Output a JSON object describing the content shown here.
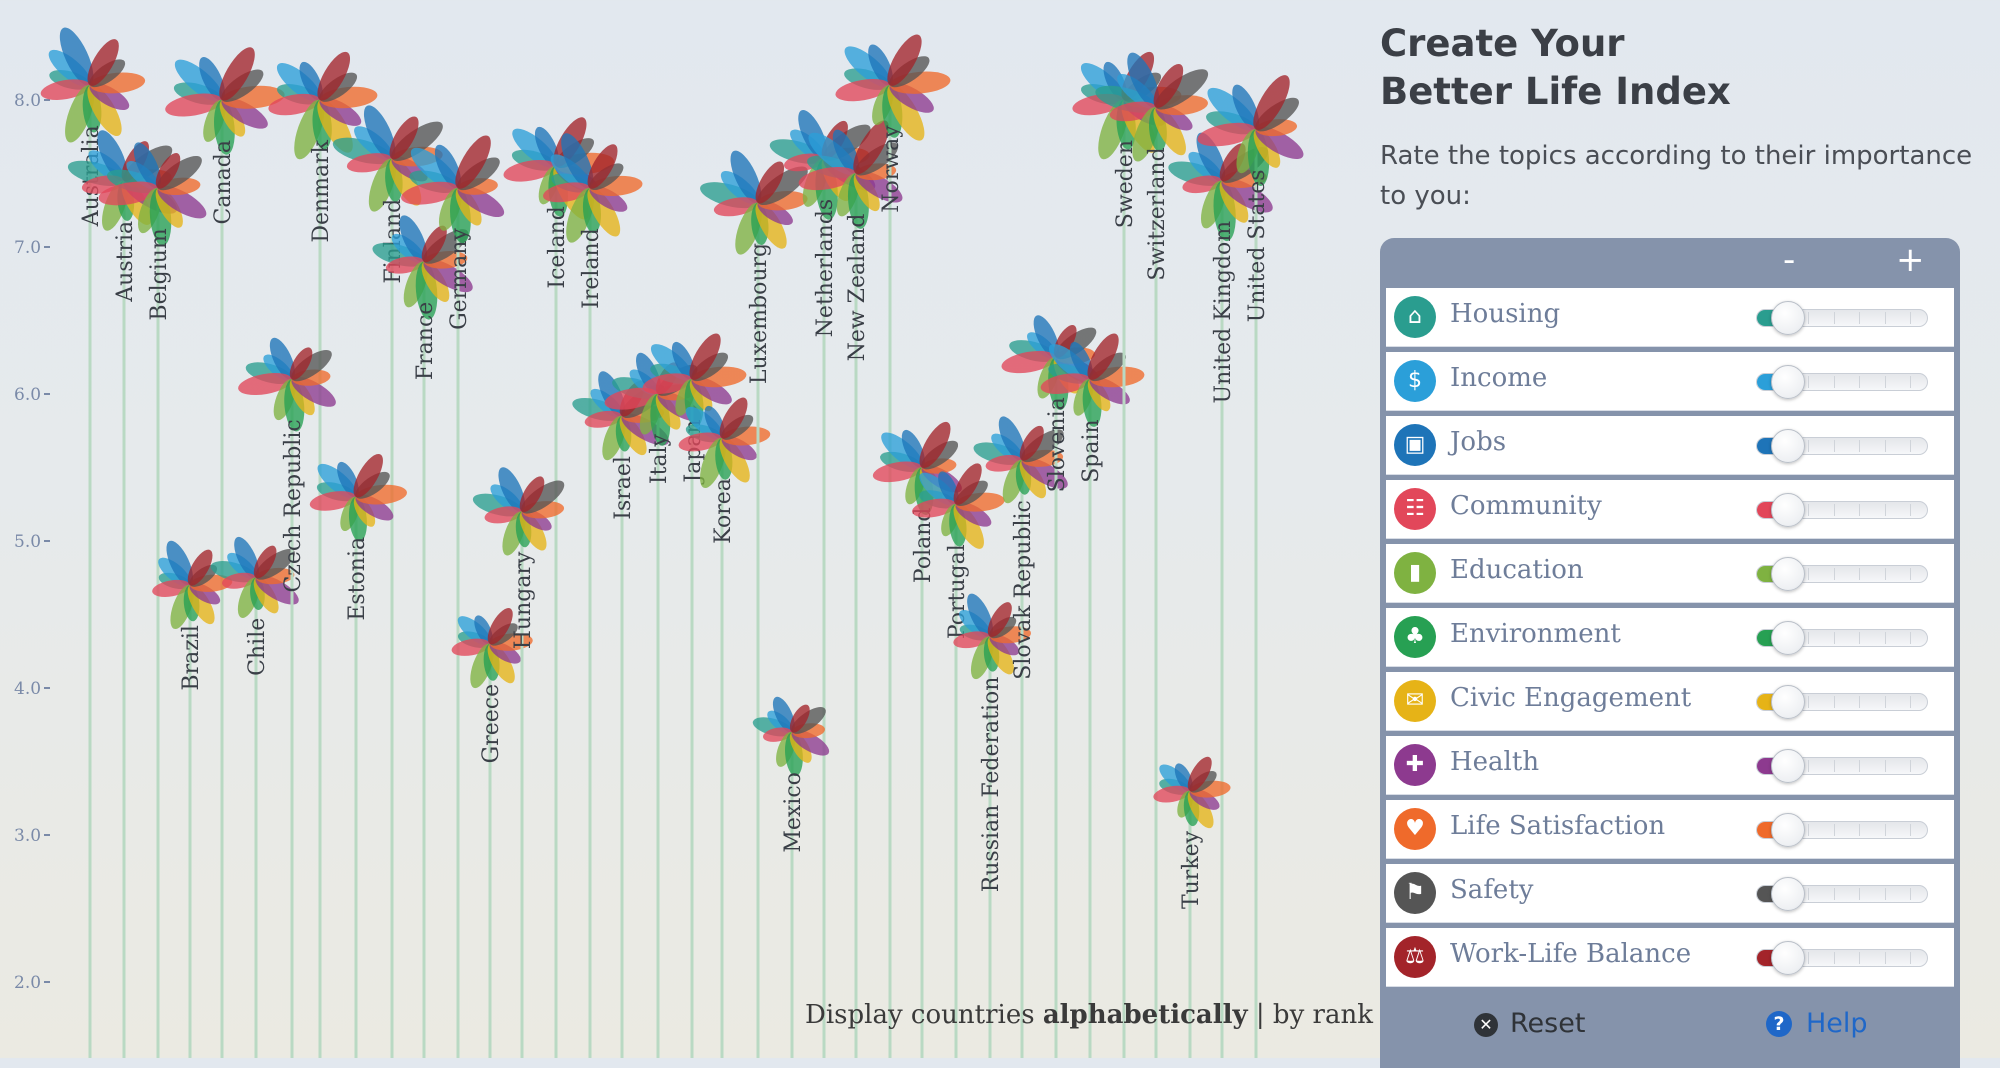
{
  "title": {
    "line1": "Create Your",
    "line2": "Better Life Index"
  },
  "subtitle": "Rate the topics according to their importance to you:",
  "panel": {
    "minus_label": "-",
    "plus_label": "+",
    "reset_label": "Reset",
    "help_label": "Help"
  },
  "display": {
    "prefix": "Display countries",
    "option_alpha": "alphabetically",
    "separator": "|",
    "option_rank": "by rank"
  },
  "topics": [
    {
      "label": "Housing",
      "color": "#2a9d8f",
      "icon": "house-icon",
      "level": 0
    },
    {
      "label": "Income",
      "color": "#2b9fd9",
      "icon": "money-icon",
      "level": 0
    },
    {
      "label": "Jobs",
      "color": "#1e74b8",
      "icon": "briefcase-icon",
      "level": 0
    },
    {
      "label": "Community",
      "color": "#e2475a",
      "icon": "people-icon",
      "level": 0
    },
    {
      "label": "Education",
      "color": "#7fb241",
      "icon": "book-icon",
      "level": 0
    },
    {
      "label": "Environment",
      "color": "#27a053",
      "icon": "tree-icon",
      "level": 0
    },
    {
      "label": "Civic Engagement",
      "color": "#e6b317",
      "icon": "ballot-icon",
      "level": 0
    },
    {
      "label": "Health",
      "color": "#8d3a8f",
      "icon": "cross-icon",
      "level": 0
    },
    {
      "label": "Life Satisfaction",
      "color": "#ef6a2b",
      "icon": "heart-icon",
      "level": 0
    },
    {
      "label": "Safety",
      "color": "#555555",
      "icon": "running-icon",
      "level": 0
    },
    {
      "label": "Work-Life Balance",
      "color": "#a3242a",
      "icon": "scales-icon",
      "level": 0
    }
  ],
  "chart_data": {
    "type": "scatter",
    "y_ticks": [
      "8.0",
      "7.0",
      "6.0",
      "5.0",
      "4.0",
      "3.0",
      "2.0"
    ],
    "ylim": [
      2.0,
      8.0
    ],
    "grid": false,
    "countries": [
      {
        "name": "Australia",
        "y": 8.1
      },
      {
        "name": "Austria",
        "y": 7.45
      },
      {
        "name": "Belgium",
        "y": 7.4
      },
      {
        "name": "Canada",
        "y": 8.0
      },
      {
        "name": "Denmark",
        "y": 8.0
      },
      {
        "name": "Finland",
        "y": 7.6
      },
      {
        "name": "France",
        "y": 6.9
      },
      {
        "name": "Germany",
        "y": 7.4
      },
      {
        "name": "Iceland",
        "y": 7.55
      },
      {
        "name": "Ireland",
        "y": 7.4
      },
      {
        "name": "Israel",
        "y": 5.85
      },
      {
        "name": "Italy",
        "y": 6.0
      },
      {
        "name": "Japan",
        "y": 6.1
      },
      {
        "name": "Korea",
        "y": 5.7
      },
      {
        "name": "Luxembourg",
        "y": 7.3
      },
      {
        "name": "Netherlands",
        "y": 7.6
      },
      {
        "name": "New Zealand",
        "y": 7.5
      },
      {
        "name": "Norway",
        "y": 8.1
      },
      {
        "name": "Brazil",
        "y": 4.7
      },
      {
        "name": "Chile",
        "y": 4.75
      },
      {
        "name": "Czech Republic",
        "y": 6.1
      },
      {
        "name": "Estonia",
        "y": 5.3
      },
      {
        "name": "Greece",
        "y": 4.3
      },
      {
        "name": "Hungary",
        "y": 5.2
      },
      {
        "name": "Mexico",
        "y": 3.7
      },
      {
        "name": "Poland",
        "y": 5.5
      },
      {
        "name": "Portugal",
        "y": 5.25
      },
      {
        "name": "Russian Federation",
        "y": 4.35
      },
      {
        "name": "Slovak Republic",
        "y": 5.55
      },
      {
        "name": "Slovenia",
        "y": 6.25
      },
      {
        "name": "Spain",
        "y": 6.1
      },
      {
        "name": "Sweden",
        "y": 8.0
      },
      {
        "name": "Switzerland",
        "y": 7.95
      },
      {
        "name": "United Kingdom",
        "y": 7.45
      },
      {
        "name": "United States",
        "y": 7.8
      },
      {
        "name": "Turkey",
        "y": 3.3
      }
    ]
  }
}
